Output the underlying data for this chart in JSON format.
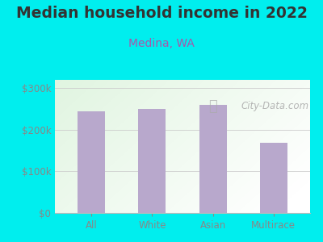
{
  "title": "Median household income in 2022",
  "subtitle": "Medina, WA",
  "categories": [
    "All",
    "White",
    "Asian",
    "Multirace"
  ],
  "values": [
    245000,
    250000,
    260000,
    168000
  ],
  "bar_color": "#b8a8cc",
  "background_outer": "#00EEEE",
  "title_color": "#333333",
  "subtitle_color": "#aa55aa",
  "tick_color": "#888888",
  "ylabel_ticks": [
    0,
    100000,
    200000,
    300000
  ],
  "ylabel_labels": [
    "$0",
    "$100k",
    "$200k",
    "$300k"
  ],
  "ylim": [
    0,
    320000
  ],
  "watermark": "City-Data.com",
  "title_fontsize": 13.5,
  "subtitle_fontsize": 10
}
